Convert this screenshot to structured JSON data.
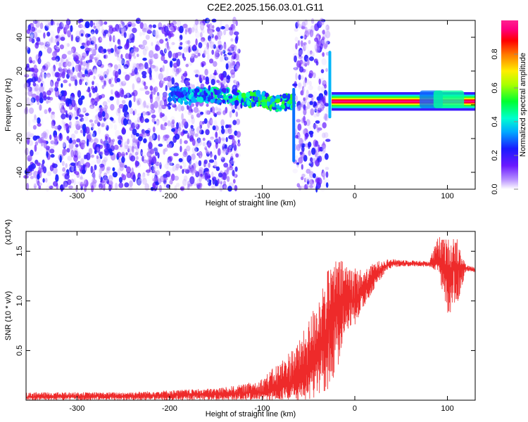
{
  "title": "C2E2.2025.156.03.01.G11",
  "colors": {
    "background": "#ffffff",
    "snr_line": "#ee2a2a",
    "noise_purple": "#7a30f0",
    "signal_red": "#ff2020"
  },
  "chart_data": [
    {
      "type": "heatmap",
      "title": "C2E2.2025.156.03.01.G11",
      "xlabel": "Height of straight line (km)",
      "ylabel": "Frequency (Hz)",
      "xlim": [
        -355,
        130
      ],
      "ylim": [
        -50,
        50
      ],
      "xticks": [
        -300,
        -200,
        -100,
        0,
        100
      ],
      "xtick_labels": [
        "-300",
        "-200",
        "-100",
        "0",
        "100"
      ],
      "yticks": [
        -40,
        -20,
        0,
        20,
        40
      ],
      "ytick_labels": [
        "-40",
        "-20",
        "0",
        "20",
        "40"
      ],
      "colorbar": {
        "label": "Normalized spectral amplitude",
        "range": [
          0.0,
          1.0
        ],
        "ticks": [
          0.0,
          0.2,
          0.4,
          0.6,
          0.8
        ],
        "tick_labels": [
          "0.0",
          "0.2",
          "0.4",
          "0.6",
          "0.8"
        ],
        "colormap": "rainbow (white/violet → blue → cyan → green → yellow → red → magenta)"
      },
      "regions": [
        {
          "description": "broadband noise",
          "x_range": [
            -355,
            -125
          ],
          "freq_range": [
            -50,
            50
          ],
          "amplitude": [
            0.0,
            0.25
          ]
        },
        {
          "description": "noise band",
          "x_range": [
            -65,
            -28
          ],
          "freq_range": [
            -50,
            50
          ],
          "amplitude": [
            0.0,
            0.25
          ]
        },
        {
          "description": "carrier emerging",
          "x_range": [
            -200,
            -65
          ],
          "freq_center": [
            8,
            0
          ],
          "amplitude": [
            0.2,
            0.6
          ]
        },
        {
          "description": "strong carrier",
          "x_range": [
            -25,
            130
          ],
          "freq_center": 2,
          "amplitude": [
            0.8,
            1.0
          ]
        }
      ],
      "carrier_track": {
        "x": [
          -200,
          -180,
          -160,
          -140,
          -120,
          -100,
          -85,
          -70,
          -60,
          -40,
          -25,
          0,
          50,
          100,
          130
        ],
        "freq": [
          7,
          5,
          6,
          5,
          3,
          4,
          0,
          2,
          3,
          3,
          2,
          2,
          2,
          2,
          2
        ]
      }
    },
    {
      "type": "line",
      "xlabel": "Height of straight line (km)",
      "ylabel": "SNR (10 * v/v)",
      "y_multiplier": "(x10^4)",
      "xlim": [
        -355,
        130
      ],
      "ylim": [
        0.0,
        1.7
      ],
      "xticks": [
        -300,
        -200,
        -100,
        0,
        100
      ],
      "xtick_labels": [
        "-300",
        "-200",
        "-100",
        "0",
        "100"
      ],
      "yticks": [
        0.5,
        1.0,
        1.5
      ],
      "ytick_labels": [
        "0.5",
        "1.0",
        "1.5"
      ],
      "series": [
        {
          "x": [
            -355,
            -300,
            -250,
            -200,
            -150,
            -120,
            -100,
            -80,
            -60,
            -50,
            -40,
            -30,
            -20,
            -10,
            0,
            10,
            20,
            30,
            40,
            60,
            80,
            90,
            100,
            110,
            120,
            130
          ],
          "y": [
            0.03,
            0.04,
            0.04,
            0.05,
            0.06,
            0.07,
            0.08,
            0.12,
            0.22,
            0.32,
            0.48,
            0.68,
            0.92,
            0.98,
            1.0,
            1.12,
            1.25,
            1.33,
            1.38,
            1.38,
            1.37,
            1.38,
            1.33,
            1.34,
            1.33,
            1.31
          ],
          "color": "#ee2a2a",
          "envelope_upper": [
            0.08,
            0.08,
            0.08,
            0.1,
            0.12,
            0.16,
            0.22,
            0.4,
            0.6,
            0.8,
            1.05,
            1.3,
            1.42,
            1.4,
            1.35,
            1.3,
            1.38,
            1.42,
            1.42,
            1.41,
            1.4,
            1.65,
            1.62,
            1.66,
            1.36,
            1.34
          ],
          "envelope_lower": [
            0.0,
            0.0,
            0.0,
            0.0,
            0.0,
            0.0,
            0.0,
            0.0,
            0.0,
            0.0,
            0.02,
            0.1,
            0.25,
            0.7,
            0.75,
            0.95,
            1.1,
            1.25,
            1.34,
            1.35,
            1.34,
            1.3,
            0.82,
            0.95,
            1.3,
            1.29
          ]
        }
      ]
    }
  ]
}
